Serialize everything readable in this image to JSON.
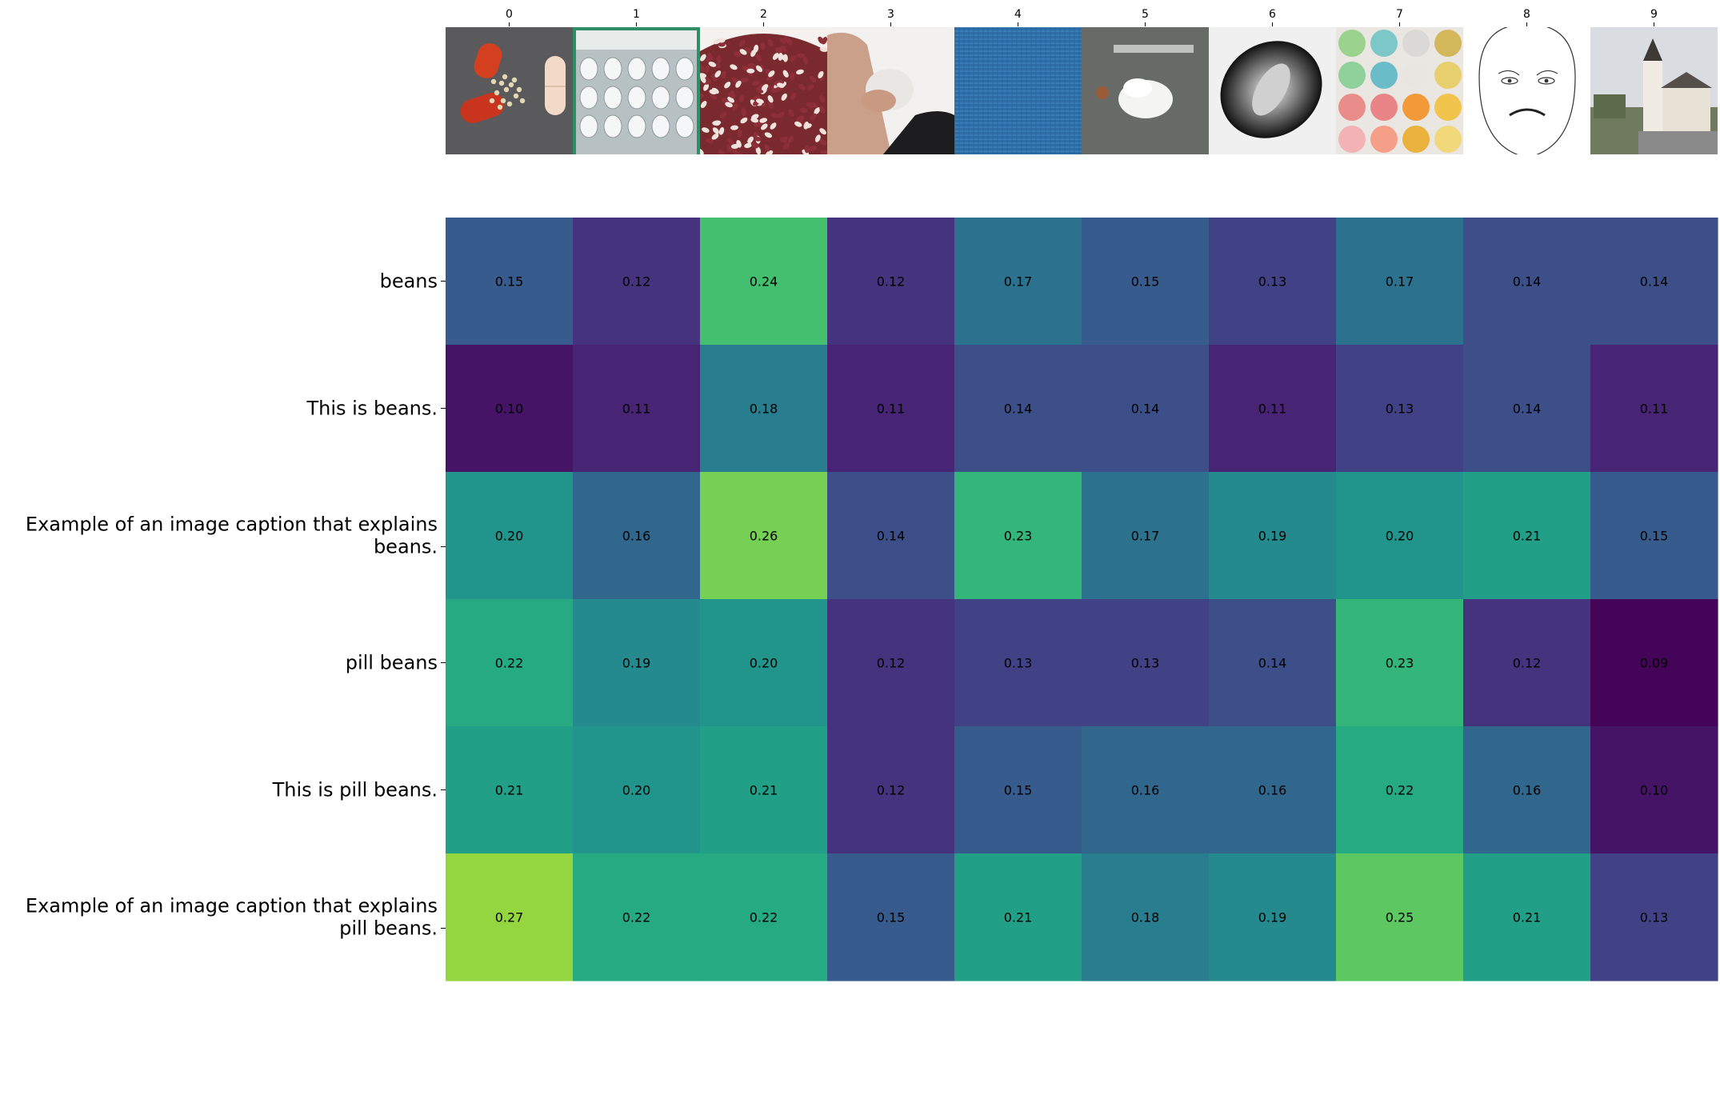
{
  "chart_data": {
    "type": "heatmap",
    "title": "",
    "xlabel": "",
    "ylabel": "",
    "colormap": "viridis",
    "value_range": [
      0.09,
      0.27
    ],
    "grid": false,
    "legend": "none",
    "x_tick_labels": [
      "0",
      "1",
      "2",
      "3",
      "4",
      "5",
      "6",
      "7",
      "8",
      "9"
    ],
    "images": [
      {
        "index": 0,
        "depicts": "capsule-spilling-pellets"
      },
      {
        "index": 1,
        "depicts": "pill-blister-pack"
      },
      {
        "index": 2,
        "depicts": "pile-of-beans"
      },
      {
        "index": 3,
        "depicts": "hand-holding-tissue"
      },
      {
        "index": 4,
        "depicts": "blue-textured-fabric"
      },
      {
        "index": 5,
        "depicts": "white-powder-pile-with-coin"
      },
      {
        "index": 6,
        "depicts": "grayscale-microscope-blob"
      },
      {
        "index": 7,
        "depicts": "grid-of-colorful-pills"
      },
      {
        "index": 8,
        "depicts": "sad-face-line-drawing"
      },
      {
        "index": 9,
        "depicts": "village-church"
      }
    ],
    "rows": [
      {
        "label": "beans",
        "values": [
          0.15,
          0.12,
          0.24,
          0.12,
          0.17,
          0.15,
          0.13,
          0.17,
          0.14,
          0.14
        ]
      },
      {
        "label": "This is beans.",
        "values": [
          0.1,
          0.11,
          0.18,
          0.11,
          0.14,
          0.14,
          0.11,
          0.13,
          0.14,
          0.11
        ]
      },
      {
        "label": "Example of an image caption that explains beans.",
        "label_lines": [
          "Example of an image caption that explains",
          "beans."
        ],
        "values": [
          0.2,
          0.16,
          0.26,
          0.14,
          0.23,
          0.17,
          0.19,
          0.2,
          0.21,
          0.15
        ]
      },
      {
        "label": "pill beans",
        "values": [
          0.22,
          0.19,
          0.2,
          0.12,
          0.13,
          0.13,
          0.14,
          0.23,
          0.12,
          0.09
        ]
      },
      {
        "label": "This is pill beans.",
        "values": [
          0.21,
          0.2,
          0.21,
          0.12,
          0.15,
          0.16,
          0.16,
          0.22,
          0.16,
          0.1
        ]
      },
      {
        "label": "Example of an image caption that explains pill beans.",
        "label_lines": [
          "Example of an image caption that explains",
          "pill beans."
        ],
        "values": [
          0.27,
          0.22,
          0.22,
          0.15,
          0.21,
          0.18,
          0.19,
          0.25,
          0.21,
          0.13
        ]
      }
    ]
  },
  "colors": {
    "text": "#000000",
    "tick": "#000000",
    "background": "#ffffff"
  }
}
